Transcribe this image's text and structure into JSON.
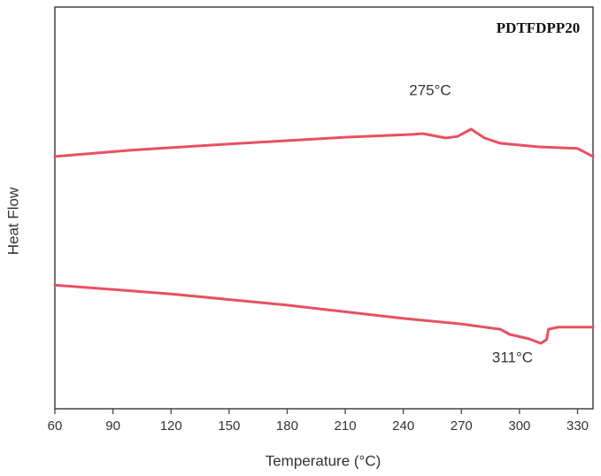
{
  "chart_data": {
    "type": "line",
    "title": "PDTFDPP20",
    "x_label": "Temperature (°C)",
    "y_label": "Heat Flow",
    "xlim": [
      60,
      338
    ],
    "ylim": [
      0,
      100
    ],
    "xticks": [
      60,
      90,
      120,
      150,
      180,
      210,
      240,
      270,
      300,
      330
    ],
    "annotations": [
      "275°C",
      "311°C"
    ],
    "series": [
      {
        "color": "#e8505e",
        "x": [
          60,
          100,
          150,
          210,
          245,
          250,
          262,
          268,
          275,
          282,
          290,
          310,
          330,
          338
        ],
        "values": [
          62.8,
          64.4,
          65.9,
          67.6,
          68.3,
          68.5,
          67.4,
          67.8,
          69.6,
          67.4,
          66.1,
          65.2,
          64.8,
          62.8
        ]
      },
      {
        "color": "#e8505e",
        "x": [
          60,
          120,
          180,
          240,
          270,
          290,
          295,
          305,
          311,
          314,
          315,
          320,
          338
        ],
        "values": [
          30.8,
          28.6,
          25.8,
          22.5,
          21.1,
          19.8,
          18.5,
          17.4,
          16.3,
          17.2,
          19.8,
          20.3,
          20.3
        ]
      }
    ]
  }
}
